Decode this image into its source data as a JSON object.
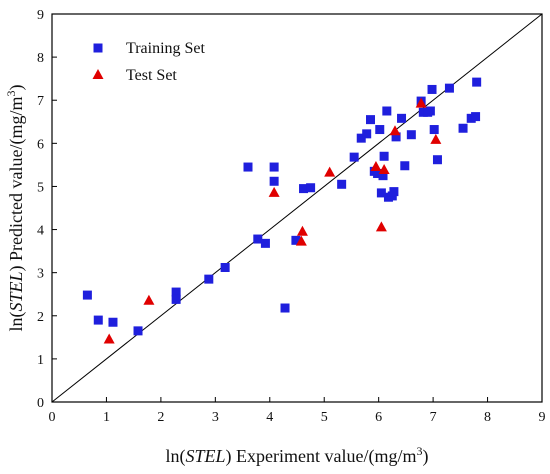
{
  "chart_data": {
    "type": "scatter",
    "xlabel_parts": [
      "ln(",
      "STEL",
      ") Experiment value/(mg/m",
      "3",
      ")"
    ],
    "ylabel_parts": [
      "ln(",
      "STEL",
      ") Predicted value/(mg/m",
      "3",
      ")"
    ],
    "xlim": [
      0,
      9
    ],
    "ylim": [
      0,
      9
    ],
    "xticks": [
      0,
      1,
      2,
      3,
      4,
      5,
      6,
      7,
      8,
      9
    ],
    "yticks": [
      0,
      1,
      2,
      3,
      4,
      5,
      6,
      7,
      8,
      9
    ],
    "grid": false,
    "legend_position": "top-left",
    "reference_line": {
      "from": [
        0,
        0
      ],
      "to": [
        9,
        9
      ]
    },
    "series": [
      {
        "name": "Training Set",
        "marker": "square",
        "color": "#1f1fdd",
        "points": [
          [
            0.65,
            2.48
          ],
          [
            0.85,
            1.9
          ],
          [
            1.12,
            1.85
          ],
          [
            1.58,
            1.65
          ],
          [
            2.28,
            2.55
          ],
          [
            2.28,
            2.38
          ],
          [
            2.88,
            2.85
          ],
          [
            3.18,
            3.12
          ],
          [
            3.78,
            3.78
          ],
          [
            3.92,
            3.68
          ],
          [
            3.6,
            5.45
          ],
          [
            4.08,
            5.45
          ],
          [
            4.08,
            5.12
          ],
          [
            4.28,
            2.18
          ],
          [
            4.48,
            3.75
          ],
          [
            4.62,
            4.95
          ],
          [
            4.75,
            4.97
          ],
          [
            5.32,
            5.05
          ],
          [
            5.55,
            5.68
          ],
          [
            5.68,
            6.12
          ],
          [
            5.78,
            6.22
          ],
          [
            5.85,
            6.55
          ],
          [
            5.92,
            5.35
          ],
          [
            5.98,
            5.3
          ],
          [
            6.02,
            6.32
          ],
          [
            6.05,
            4.85
          ],
          [
            6.08,
            5.25
          ],
          [
            6.1,
            5.7
          ],
          [
            6.15,
            6.75
          ],
          [
            6.18,
            4.75
          ],
          [
            6.25,
            4.78
          ],
          [
            6.28,
            4.88
          ],
          [
            6.32,
            6.15
          ],
          [
            6.42,
            6.58
          ],
          [
            6.48,
            5.48
          ],
          [
            6.6,
            6.2
          ],
          [
            6.78,
            6.98
          ],
          [
            6.82,
            6.72
          ],
          [
            6.9,
            6.72
          ],
          [
            6.95,
            6.75
          ],
          [
            6.98,
            7.25
          ],
          [
            7.02,
            6.32
          ],
          [
            7.08,
            5.62
          ],
          [
            7.3,
            7.28
          ],
          [
            7.55,
            6.35
          ],
          [
            7.7,
            6.58
          ],
          [
            7.78,
            6.62
          ],
          [
            7.8,
            7.42
          ]
        ]
      },
      {
        "name": "Test Set",
        "marker": "triangle",
        "color": "#e00000",
        "points": [
          [
            1.05,
            1.45
          ],
          [
            1.78,
            2.35
          ],
          [
            4.08,
            4.85
          ],
          [
            4.58,
            3.72
          ],
          [
            4.6,
            3.95
          ],
          [
            5.1,
            5.32
          ],
          [
            5.95,
            5.45
          ],
          [
            6.05,
            4.05
          ],
          [
            6.1,
            5.38
          ],
          [
            6.3,
            6.28
          ],
          [
            6.78,
            6.92
          ],
          [
            7.05,
            6.08
          ]
        ]
      }
    ]
  }
}
